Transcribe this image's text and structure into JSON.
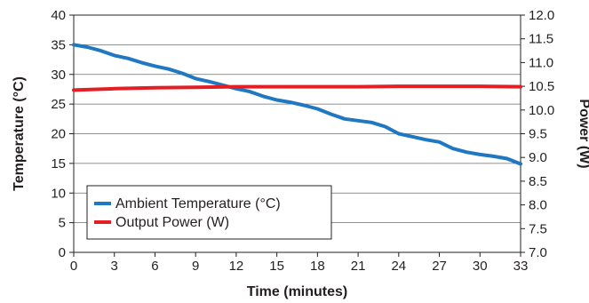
{
  "chart_data": {
    "type": "line",
    "xlabel": "Time (minutes)",
    "ylabel_left": "Temperature (°C)",
    "ylabel_right": "Power (W)",
    "xlim": [
      0,
      33
    ],
    "ylim_left": [
      0,
      40
    ],
    "ylim_right": [
      7.0,
      12.0
    ],
    "x_ticks": [
      "0",
      "3",
      "6",
      "9",
      "12",
      "15",
      "18",
      "21",
      "24",
      "27",
      "30",
      "33"
    ],
    "y_left_ticks": [
      "0",
      "5",
      "10",
      "15",
      "20",
      "25",
      "30",
      "35",
      "40"
    ],
    "y_right_ticks": [
      "7.0",
      "7.5",
      "8.0",
      "8.5",
      "9.0",
      "9.5",
      "10.0",
      "10.5",
      "11.0",
      "11.5",
      "12.0"
    ],
    "grid": "horizontal",
    "legend_position": "bottom-left",
    "series": [
      {
        "name": "Ambient Temperature (°C)",
        "axis": "left",
        "color": "#1f78c1",
        "x": [
          0,
          1,
          2,
          3,
          4,
          5,
          6,
          7,
          8,
          9,
          10,
          11,
          12,
          13,
          14,
          15,
          16,
          17,
          18,
          19,
          20,
          21,
          22,
          23,
          24,
          25,
          26,
          27,
          28,
          29,
          30,
          31,
          32,
          33
        ],
        "values": [
          35.0,
          34.6,
          34.0,
          33.2,
          32.7,
          32.0,
          31.4,
          30.9,
          30.2,
          29.3,
          28.8,
          28.2,
          27.6,
          27.1,
          26.3,
          25.7,
          25.3,
          24.8,
          24.2,
          23.3,
          22.5,
          22.2,
          21.9,
          21.2,
          20.0,
          19.5,
          19.0,
          18.6,
          17.5,
          16.9,
          16.5,
          16.2,
          15.8,
          14.9
        ]
      },
      {
        "name": "Output Power (W)",
        "axis": "right",
        "color": "#e31e24",
        "x": [
          0,
          3,
          6,
          9,
          12,
          15,
          18,
          21,
          24,
          27,
          30,
          33
        ],
        "values": [
          10.42,
          10.45,
          10.47,
          10.48,
          10.49,
          10.49,
          10.49,
          10.49,
          10.5,
          10.5,
          10.5,
          10.49
        ]
      }
    ]
  },
  "colors": {
    "temperature": "#1f78c1",
    "power": "#e31e24",
    "axis": "#231f20",
    "grid": "#6d6e71"
  }
}
